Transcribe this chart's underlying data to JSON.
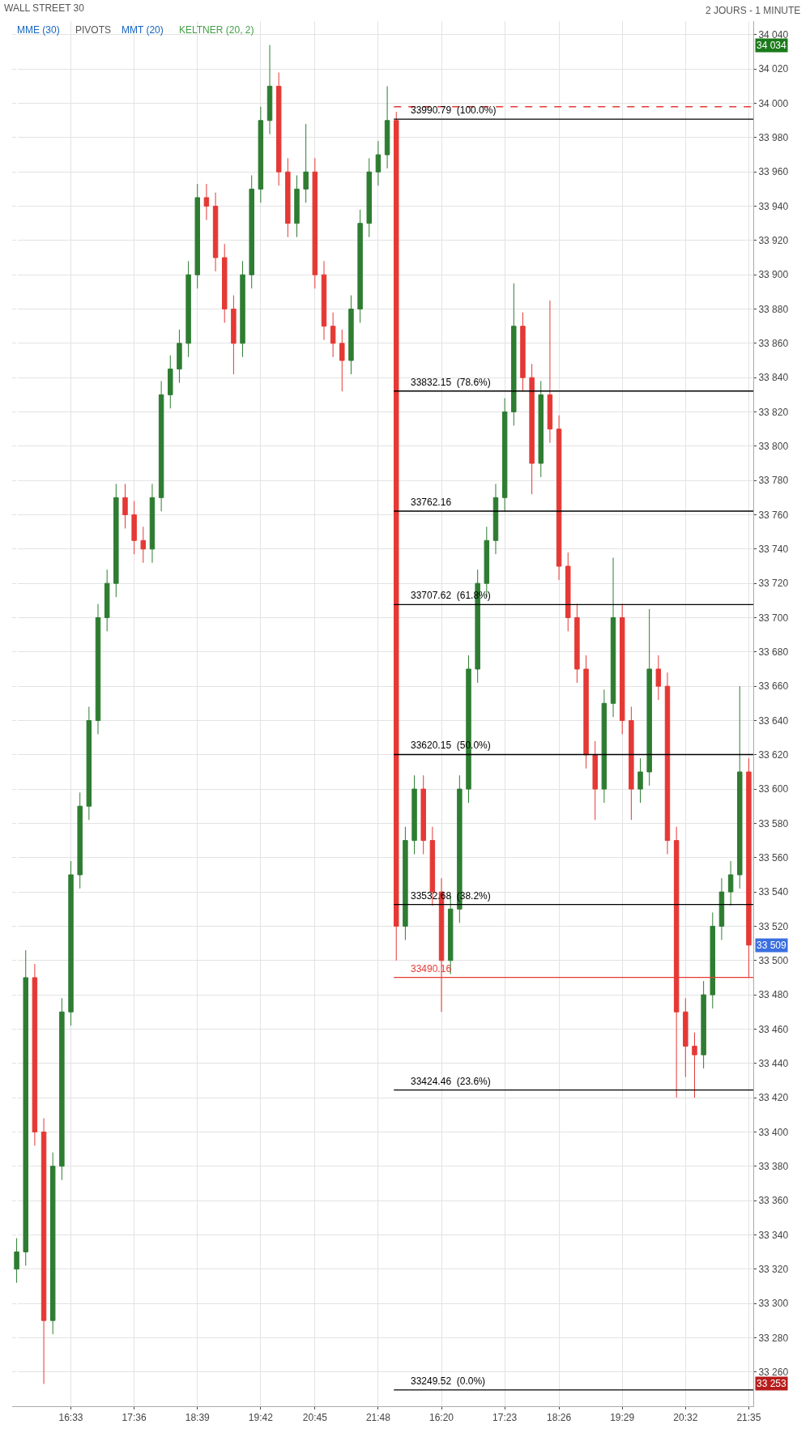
{
  "chart_data": {
    "type": "candlestick",
    "title": "WALL STREET 30",
    "subtitle": "2 JOURS - 1 MINUTE",
    "categories": [
      null,
      null,
      null,
      null,
      null,
      null,
      "16:33",
      null,
      null,
      null,
      null,
      null,
      null,
      "17:36",
      null,
      null,
      null,
      null,
      null,
      null,
      "18:39",
      null,
      null,
      null,
      null,
      null,
      null,
      "19:42",
      null,
      null,
      null,
      null,
      null,
      "20:45",
      null,
      null,
      null,
      null,
      null,
      null,
      "21:48",
      null,
      null,
      null,
      null,
      null,
      null,
      "16:20",
      null,
      null,
      null,
      null,
      null,
      null,
      "17:23",
      null,
      null,
      null,
      null,
      null,
      "18:26",
      null,
      null,
      null,
      null,
      null,
      null,
      "19:29",
      null,
      null,
      null,
      null,
      null,
      null,
      "20:32",
      null,
      null,
      null,
      null,
      null,
      null,
      "21:35"
    ],
    "ohlc": [
      [
        33320,
        33338,
        33312,
        33330
      ],
      [
        33330,
        33506,
        33322,
        33490
      ],
      [
        33490,
        33498,
        33392,
        33400
      ],
      [
        33400,
        33408,
        33253,
        33290
      ],
      [
        33290,
        33388,
        33282,
        33380
      ],
      [
        33380,
        33478,
        33372,
        33470
      ],
      [
        33470,
        33558,
        33462,
        33550
      ],
      [
        33550,
        33598,
        33542,
        33590
      ],
      [
        33590,
        33648,
        33582,
        33640
      ],
      [
        33640,
        33708,
        33632,
        33700
      ],
      [
        33700,
        33728,
        33692,
        33720
      ],
      [
        33720,
        33778,
        33712,
        33770
      ],
      [
        33770,
        33778,
        33752,
        33760
      ],
      [
        33760,
        33768,
        33737,
        33745
      ],
      [
        33745,
        33753,
        33732,
        33740
      ],
      [
        33740,
        33778,
        33732,
        33770
      ],
      [
        33770,
        33838,
        33762,
        33830
      ],
      [
        33830,
        33853,
        33822,
        33845
      ],
      [
        33845,
        33868,
        33837,
        33860
      ],
      [
        33860,
        33908,
        33852,
        33900
      ],
      [
        33900,
        33953,
        33892,
        33945
      ],
      [
        33945,
        33953,
        33932,
        33940
      ],
      [
        33940,
        33948,
        33902,
        33910
      ],
      [
        33910,
        33918,
        33872,
        33880
      ],
      [
        33880,
        33888,
        33842,
        33860
      ],
      [
        33860,
        33908,
        33852,
        33900
      ],
      [
        33900,
        33958,
        33892,
        33950
      ],
      [
        33950,
        33998,
        33942,
        33990
      ],
      [
        33990,
        34034,
        33982,
        34010
      ],
      [
        34010,
        34018,
        33952,
        33960
      ],
      [
        33960,
        33968,
        33922,
        33930
      ],
      [
        33930,
        33958,
        33922,
        33950
      ],
      [
        33950,
        33988,
        33942,
        33960
      ],
      [
        33960,
        33968,
        33892,
        33900
      ],
      [
        33900,
        33908,
        33862,
        33870
      ],
      [
        33870,
        33878,
        33852,
        33860
      ],
      [
        33860,
        33868,
        33832,
        33850
      ],
      [
        33850,
        33888,
        33842,
        33880
      ],
      [
        33880,
        33938,
        33872,
        33930
      ],
      [
        33930,
        33968,
        33922,
        33960
      ],
      [
        33960,
        33978,
        33952,
        33970
      ],
      [
        33970,
        34010,
        33962,
        33990
      ],
      [
        33990,
        33995,
        33500,
        33520
      ],
      [
        33520,
        33578,
        33512,
        33570
      ],
      [
        33570,
        33608,
        33562,
        33600
      ],
      [
        33600,
        33608,
        33562,
        33570
      ],
      [
        33570,
        33578,
        33532,
        33540
      ],
      [
        33540,
        33548,
        33470,
        33500
      ],
      [
        33500,
        33538,
        33492,
        33530
      ],
      [
        33530,
        33608,
        33522,
        33600
      ],
      [
        33600,
        33678,
        33592,
        33670
      ],
      [
        33670,
        33728,
        33662,
        33720
      ],
      [
        33720,
        33753,
        33712,
        33745
      ],
      [
        33745,
        33778,
        33737,
        33770
      ],
      [
        33770,
        33828,
        33762,
        33820
      ],
      [
        33820,
        33895,
        33812,
        33870
      ],
      [
        33870,
        33878,
        33832,
        33840
      ],
      [
        33840,
        33848,
        33772,
        33790
      ],
      [
        33790,
        33838,
        33782,
        33830
      ],
      [
        33830,
        33885,
        33802,
        33810
      ],
      [
        33810,
        33818,
        33722,
        33730
      ],
      [
        33730,
        33738,
        33692,
        33700
      ],
      [
        33700,
        33708,
        33662,
        33670
      ],
      [
        33670,
        33678,
        33612,
        33620
      ],
      [
        33620,
        33628,
        33582,
        33600
      ],
      [
        33600,
        33658,
        33592,
        33650
      ],
      [
        33650,
        33735,
        33642,
        33700
      ],
      [
        33700,
        33708,
        33632,
        33640
      ],
      [
        33640,
        33648,
        33582,
        33600
      ],
      [
        33600,
        33618,
        33592,
        33610
      ],
      [
        33610,
        33705,
        33602,
        33670
      ],
      [
        33670,
        33678,
        33652,
        33660
      ],
      [
        33660,
        33668,
        33562,
        33570
      ],
      [
        33570,
        33578,
        33420,
        33470
      ],
      [
        33470,
        33478,
        33432,
        33450
      ],
      [
        33450,
        33458,
        33420,
        33445
      ],
      [
        33445,
        33488,
        33437,
        33480
      ],
      [
        33480,
        33528,
        33472,
        33520
      ],
      [
        33520,
        33548,
        33512,
        33540
      ],
      [
        33540,
        33558,
        33532,
        33550
      ],
      [
        33550,
        33660,
        33542,
        33610
      ],
      [
        33610,
        33618,
        33490,
        33509
      ]
    ],
    "ylim": [
      33240,
      34048
    ],
    "yticks": [
      {
        "value": 33260,
        "label": "33 260"
      },
      {
        "value": 33280,
        "label": "33 280"
      },
      {
        "value": 33300,
        "label": "33 300"
      },
      {
        "value": 33320,
        "label": "33 320"
      },
      {
        "value": 33340,
        "label": "33 340"
      },
      {
        "value": 33360,
        "label": "33 360"
      },
      {
        "value": 33380,
        "label": "33 380"
      },
      {
        "value": 33400,
        "label": "33 400"
      },
      {
        "value": 33420,
        "label": "33 420"
      },
      {
        "value": 33440,
        "label": "33 440"
      },
      {
        "value": 33460,
        "label": "33 460"
      },
      {
        "value": 33480,
        "label": "33 480"
      },
      {
        "value": 33500,
        "label": "33 500"
      },
      {
        "value": 33520,
        "label": "33 520"
      },
      {
        "value": 33540,
        "label": "33 540"
      },
      {
        "value": 33560,
        "label": "33 560"
      },
      {
        "value": 33580,
        "label": "33 580"
      },
      {
        "value": 33600,
        "label": "33 600"
      },
      {
        "value": 33620,
        "label": "33 620"
      },
      {
        "value": 33640,
        "label": "33 640"
      },
      {
        "value": 33660,
        "label": "33 660"
      },
      {
        "value": 33680,
        "label": "33 680"
      },
      {
        "value": 33700,
        "label": "33 700"
      },
      {
        "value": 33720,
        "label": "33 720"
      },
      {
        "value": 33740,
        "label": "33 740"
      },
      {
        "value": 33760,
        "label": "33 760"
      },
      {
        "value": 33780,
        "label": "33 780"
      },
      {
        "value": 33800,
        "label": "33 800"
      },
      {
        "value": 33820,
        "label": "33 820"
      },
      {
        "value": 33840,
        "label": "33 840"
      },
      {
        "value": 33860,
        "label": "33 860"
      },
      {
        "value": 33880,
        "label": "33 880"
      },
      {
        "value": 33900,
        "label": "33 900"
      },
      {
        "value": 33920,
        "label": "33 920"
      },
      {
        "value": 33940,
        "label": "33 940"
      },
      {
        "value": 33960,
        "label": "33 960"
      },
      {
        "value": 33980,
        "label": "33 980"
      },
      {
        "value": 34000,
        "label": "34 000"
      },
      {
        "value": 34020,
        "label": "34 020"
      },
      {
        "value": 34040,
        "label": "34 040"
      }
    ],
    "grid": true,
    "ref_lines": [
      {
        "axis": "y",
        "value": 33998,
        "label": null,
        "color": "#e53935",
        "line_style": "dashed"
      },
      {
        "axis": "y",
        "value": 33990.79,
        "label": "33990.79  (100.0%)",
        "color": "#000000"
      },
      {
        "axis": "y",
        "value": 33832.15,
        "label": "33832.15  (78.6%)",
        "color": "#000000"
      },
      {
        "axis": "y",
        "value": 33762.16,
        "label": "33762.16",
        "color": "#000000"
      },
      {
        "axis": "y",
        "value": 33707.62,
        "label": "33707.62  (61.8%)",
        "color": "#000000"
      },
      {
        "axis": "y",
        "value": 33620.15,
        "label": "33620.15  (50.0%)",
        "color": "#000000"
      },
      {
        "axis": "y",
        "value": 33532.68,
        "label": "33532.68  (38.2%)",
        "color": "#000000"
      },
      {
        "axis": "y",
        "value": 33490.16,
        "label": "33490.16",
        "color": "#e53935"
      },
      {
        "axis": "y",
        "value": 33424.46,
        "label": "33424.46  (23.6%)",
        "color": "#000000"
      },
      {
        "axis": "y",
        "value": 33249.52,
        "label": "33249.52  (0.0%)",
        "color": "#000000"
      }
    ],
    "annotations": [
      "MME (30)",
      "PIVOTS",
      "MMT (20)",
      "KELTNER (20, 2)",
      {
        "text": "34 034",
        "y": 34034
      },
      {
        "text": "33 509",
        "y": 33509
      },
      {
        "text": "33 253",
        "y": 33253
      }
    ]
  }
}
